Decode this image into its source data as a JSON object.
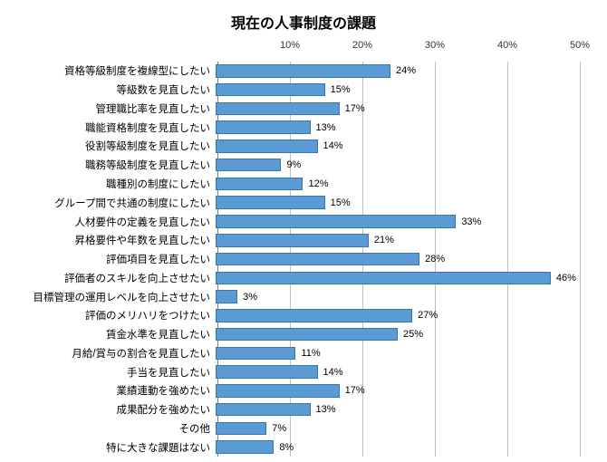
{
  "chart": {
    "type": "bar-horizontal",
    "title": "現在の人事制度の課題",
    "title_fontsize": 16,
    "label_fontsize": 11.5,
    "value_fontsize": 11,
    "axis_fontsize": 11,
    "background_color": "#ffffff",
    "bar_color": "#5b9bd5",
    "bar_border_color": "#3a76a8",
    "grid_color": "#bfbfbf",
    "baseline_color": "#7f7f7f",
    "text_color": "#000000",
    "x_max": 50,
    "ticks": [
      10,
      20,
      30,
      40,
      50
    ],
    "tick_format_suffix": "%",
    "value_format_suffix": "%",
    "bar_height_ratio": 0.7,
    "categories": [
      "資格等級制度を複線型にしたい",
      "等級数を見直したい",
      "管理職比率を見直したい",
      "職能資格制度を見直したい",
      "役割等級制度を見直したい",
      "職務等級制度を見直したい",
      "職種別の制度にしたい",
      "グループ間で共通の制度にしたい",
      "人材要件の定義を見直したい",
      "昇格要件や年数を見直したい",
      "評価項目を見直したい",
      "評価者のスキルを向上させたい",
      "目標管理の運用レベルを向上させたい",
      "評価のメリハリをつけたい",
      "賃金水準を見直したい",
      "月給/賞与の割合を見直したい",
      "手当を見直したい",
      "業績連動を強めたい",
      "成果配分を強めたい",
      "その他",
      "特に大きな課題はない"
    ],
    "values": [
      24,
      15,
      17,
      13,
      14,
      9,
      12,
      15,
      33,
      21,
      28,
      46,
      3,
      27,
      25,
      11,
      14,
      17,
      13,
      7,
      8
    ]
  }
}
